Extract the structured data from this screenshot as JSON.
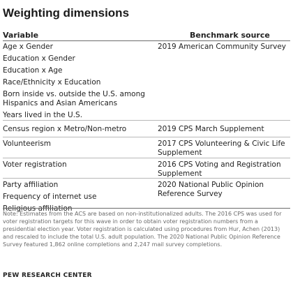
{
  "title": "Weighting dimensions",
  "columns": {
    "variable": "Variable",
    "source": "Benchmark source"
  },
  "groups": [
    {
      "variables": [
        "Age x Gender",
        "Education x Gender",
        "Education x Age",
        "Race/Ethnicity x Education",
        "Born inside vs. outside the U.S. among Hispanics and Asian Americans",
        "Years lived in the U.S."
      ],
      "source": "2019 American Community Survey"
    },
    {
      "variables": [
        "Census region x Metro/Non-metro"
      ],
      "source": "2019 CPS March Supplement"
    },
    {
      "variables": [
        "Volunteerism"
      ],
      "source": "2017 CPS Volunteering & Civic Life Supplement"
    },
    {
      "variables": [
        "Voter registration"
      ],
      "source": "2016 CPS Voting and Registration Supplement"
    },
    {
      "variables": [
        "Party affiliation",
        "Frequency of internet use",
        "Religious affiliation"
      ],
      "source": "2020 National Public Opinion Reference Survey"
    }
  ],
  "note": "Note: Estimates from the ACS are based on non-institutionalized adults.  The 2016 CPS was used for voter registration targets for this wave in order to obtain voter registration numbers from a presidential election year. Voter registration is calculated using procedures from Hur, Achen (2013) and rescaled to include the total U.S. adult population. The 2020 National Public Opinion Reference Survey featured 1,862 online completions and 2,247 mail survey completions.",
  "source_org": "PEW RESEARCH CENTER"
}
